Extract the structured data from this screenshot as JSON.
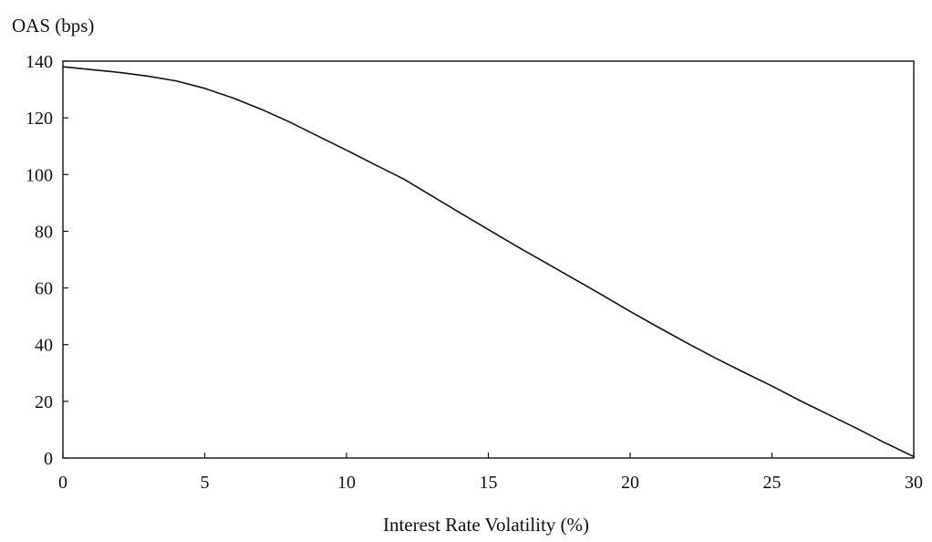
{
  "chart_data": {
    "type": "line",
    "title": "",
    "ylabel": "OAS (bps)",
    "xlabel": "Interest Rate Volatility (%)",
    "xlim": [
      0,
      30
    ],
    "ylim": [
      0,
      140
    ],
    "x_ticks": [
      0,
      5,
      10,
      15,
      20,
      25,
      30
    ],
    "y_ticks": [
      0,
      20,
      40,
      60,
      80,
      100,
      120,
      140
    ],
    "grid": false,
    "series": [
      {
        "color": "#111111",
        "x": [
          0,
          1,
          2,
          3,
          4,
          5,
          6,
          7,
          8,
          9,
          10,
          11,
          12,
          13,
          14,
          15,
          16,
          17,
          18,
          19,
          20,
          21,
          22,
          23,
          24,
          25,
          26,
          27,
          28,
          29,
          30
        ],
        "y": [
          138,
          137,
          136,
          134.7,
          133,
          130.4,
          127,
          123,
          118.5,
          113.5,
          108.6,
          103.5,
          98.5,
          92.5,
          86.5,
          80.6,
          74.7,
          69,
          63.3,
          57.6,
          51.7,
          46.1,
          40.6,
          35.3,
          30.3,
          25.4,
          20.2,
          15.3,
          10.4,
          5.3,
          0.5
        ]
      }
    ]
  }
}
